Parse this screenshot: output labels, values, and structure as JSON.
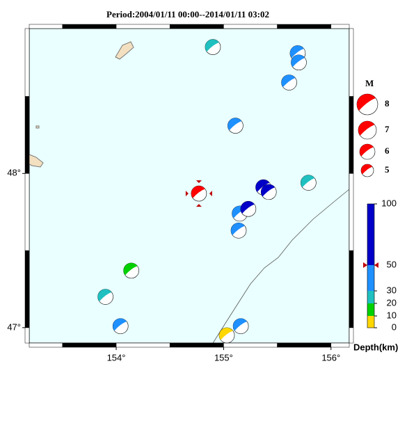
{
  "chart_data": {
    "type": "map",
    "title": "Period:2004/01/11 00:00--2014/01/11 03:02",
    "xlim": [
      153.19,
      156.17
    ],
    "ylim": [
      46.9,
      48.94
    ],
    "xticks": [
      {
        "value": 154,
        "label": "154°"
      },
      {
        "value": 155,
        "label": "155°"
      },
      {
        "value": 156,
        "label": "156°"
      }
    ],
    "yticks": [
      {
        "value": 47,
        "label": "47°"
      },
      {
        "value": 48,
        "label": "48°"
      }
    ],
    "events": {
      "lon": [
        154.9,
        155.69,
        155.7,
        155.61,
        155.11,
        154.77,
        155.37,
        155.42,
        155.79,
        155.15,
        155.23,
        155.14,
        154.14,
        153.9,
        154.04,
        155.16,
        155.03
      ],
      "lat": [
        48.82,
        48.78,
        48.72,
        48.59,
        48.31,
        47.87,
        47.91,
        47.88,
        47.94,
        47.74,
        47.77,
        47.63,
        47.37,
        47.2,
        47.01,
        47.01,
        46.95
      ],
      "colors": [
        "#20c0c0",
        "#1e90ff",
        "#1e90ff",
        "#1e90ff",
        "#1e90ff",
        "#ff0000",
        "#0000c8",
        "#0000c8",
        "#20c0c0",
        "#1e90ff",
        "#0000c8",
        "#1e90ff",
        "#00d000",
        "#20c0c0",
        "#1e90ff",
        "#1e90ff",
        "#ffd700"
      ]
    },
    "magnitude_legend": {
      "title": "M",
      "labels": [
        "8",
        "7",
        "6",
        "5"
      ]
    },
    "depth_legend": {
      "title": "Depth(km)",
      "ticks": [
        0,
        10,
        20,
        30,
        50,
        100
      ],
      "colors": [
        "#ffd700",
        "#00d000",
        "#20c0c0",
        "#1e90ff",
        "#0000c8"
      ]
    }
  }
}
